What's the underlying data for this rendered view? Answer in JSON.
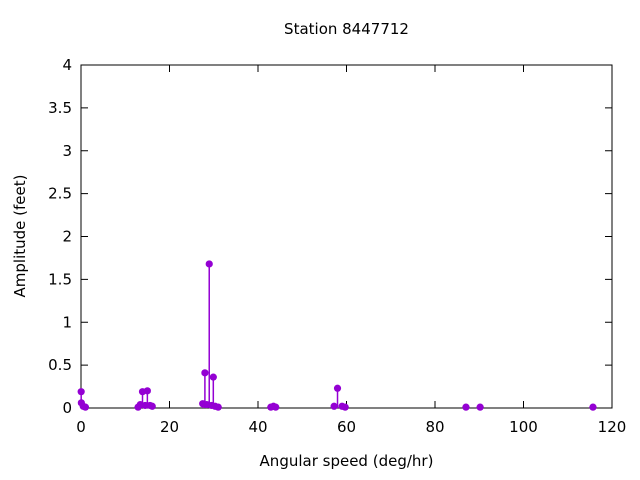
{
  "chart_data": {
    "type": "scatter",
    "style": "impulses-and-filled-points",
    "marker": "filled-circle",
    "title": "Station 8447712",
    "xlabel": "Angular speed (deg/hr)",
    "ylabel": "Amplitude (feet)",
    "xlim": [
      0,
      120
    ],
    "ylim": [
      0,
      4
    ],
    "xticks": [
      0,
      20,
      40,
      60,
      80,
      100,
      120
    ],
    "xtick_labels": [
      "0",
      "20",
      "40",
      "60",
      "80",
      "100",
      "120"
    ],
    "yticks": [
      0,
      0.5,
      1,
      1.5,
      2,
      2.5,
      3,
      3.5,
      4
    ],
    "ytick_labels": [
      "0",
      "0.5",
      "1",
      "1.5",
      "2",
      "2.5",
      "3",
      "3.5",
      "4"
    ],
    "grid": false,
    "legend": "none",
    "axis_color": "#000000",
    "point_color": "#9400D3",
    "points": [
      [
        0.04,
        0.19
      ],
      [
        0.08,
        0.06
      ],
      [
        0.5,
        0.02
      ],
      [
        1.0,
        0.01
      ],
      [
        12.9,
        0.01
      ],
      [
        13.4,
        0.04
      ],
      [
        13.9,
        0.19
      ],
      [
        14.5,
        0.03
      ],
      [
        15.0,
        0.2
      ],
      [
        15.6,
        0.03
      ],
      [
        16.1,
        0.02
      ],
      [
        27.5,
        0.05
      ],
      [
        28.0,
        0.41
      ],
      [
        28.4,
        0.04
      ],
      [
        28.98,
        1.68
      ],
      [
        29.5,
        0.03
      ],
      [
        29.9,
        0.36
      ],
      [
        30.3,
        0.02
      ],
      [
        31.0,
        0.01
      ],
      [
        42.9,
        0.01
      ],
      [
        43.5,
        0.02
      ],
      [
        44.0,
        0.01
      ],
      [
        57.2,
        0.02
      ],
      [
        57.97,
        0.23
      ],
      [
        59.0,
        0.02
      ],
      [
        59.7,
        0.01
      ],
      [
        87.0,
        0.01
      ],
      [
        90.2,
        0.01
      ],
      [
        115.7,
        0.01
      ]
    ]
  }
}
